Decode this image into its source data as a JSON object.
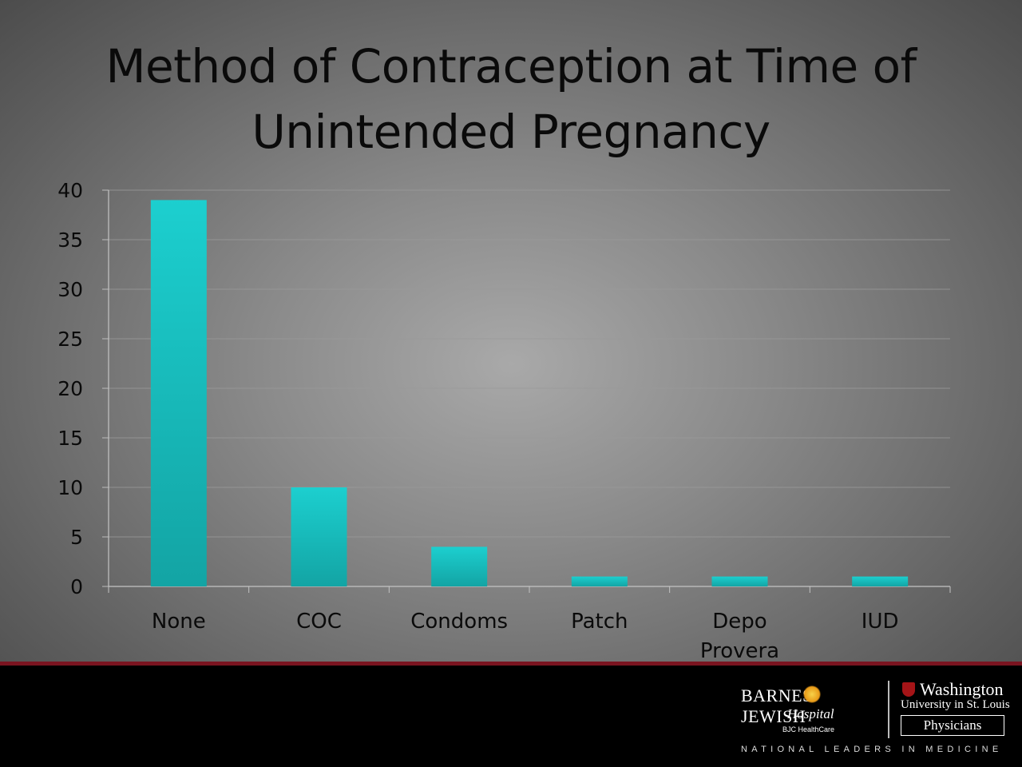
{
  "chart_data": {
    "type": "bar",
    "title": "Method of Contraception at Time of Unintended Pregnancy",
    "title_lines": [
      "Method of Contraception at Time of",
      "Unintended Pregnancy"
    ],
    "categories": [
      "None",
      "COC",
      "Condoms",
      "Patch",
      "Depo Provera",
      "IUD"
    ],
    "category_lines": [
      [
        "None"
      ],
      [
        "COC"
      ],
      [
        "Condoms"
      ],
      [
        "Patch"
      ],
      [
        "Depo",
        "Provera"
      ],
      [
        "IUD"
      ]
    ],
    "values": [
      39,
      10,
      4,
      1,
      1,
      1
    ],
    "ylim": [
      0,
      40
    ],
    "yticks": [
      "0",
      "5",
      "10",
      "15",
      "20",
      "25",
      "30",
      "35",
      "40"
    ],
    "xlabel": "",
    "ylabel": "",
    "grid": true,
    "bar_color": "#1ccfcf",
    "bar_color_dark": "#13a4a4"
  },
  "footer": {
    "bjh_name": "BARNES JEWISH",
    "bjh_hospital": "Hospital",
    "bjh_healthcare": "BJC HealthCare",
    "wu_name": "Washington",
    "wu_university": "University in St. Louis",
    "wu_physicians": "Physicians",
    "tagline": "NATIONAL LEADERS IN MEDICINE"
  }
}
